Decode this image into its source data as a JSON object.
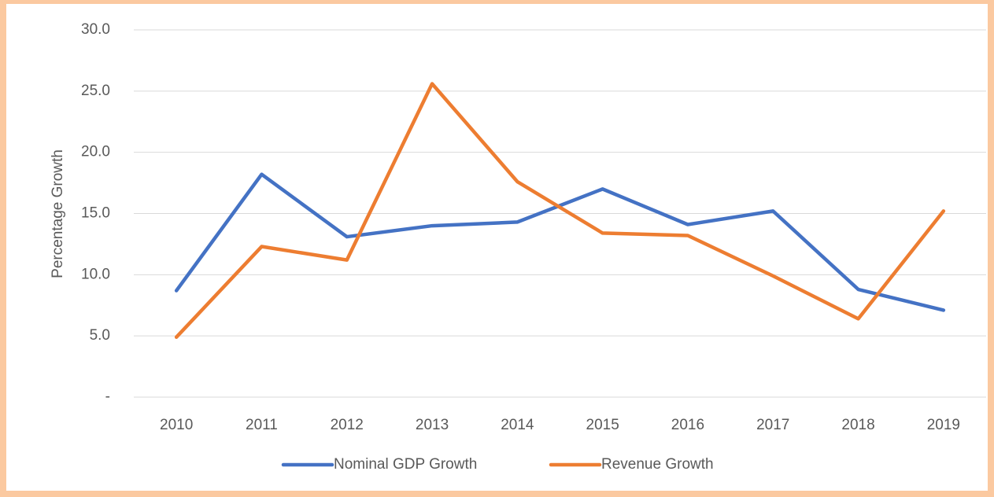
{
  "chart_data": {
    "type": "line",
    "y_label": "Percentage Growth",
    "categories": [
      "2010",
      "2011",
      "2012",
      "2013",
      "2014",
      "2015",
      "2016",
      "2017",
      "2018",
      "2019"
    ],
    "series": [
      {
        "name": "Nominal GDP Growth",
        "color": "#4472c4",
        "values": [
          8.7,
          18.2,
          13.1,
          14.0,
          14.3,
          17.0,
          14.1,
          15.2,
          8.8,
          7.1
        ]
      },
      {
        "name": "Revenue Growth",
        "color": "#ed7d31",
        "values": [
          4.9,
          12.3,
          11.2,
          25.6,
          17.6,
          13.4,
          13.2,
          9.9,
          6.4,
          15.2
        ]
      }
    ],
    "ylim": [
      0,
      30
    ],
    "yticks": [
      {
        "value": 0,
        "label": "-"
      },
      {
        "value": 5,
        "label": "5.0"
      },
      {
        "value": 10,
        "label": "10.0"
      },
      {
        "value": 15,
        "label": "15.0"
      },
      {
        "value": 20,
        "label": "20.0"
      },
      {
        "value": 25,
        "label": "25.0"
      },
      {
        "value": 30,
        "label": "30.0"
      }
    ],
    "grid": true,
    "legend": "bottom"
  }
}
